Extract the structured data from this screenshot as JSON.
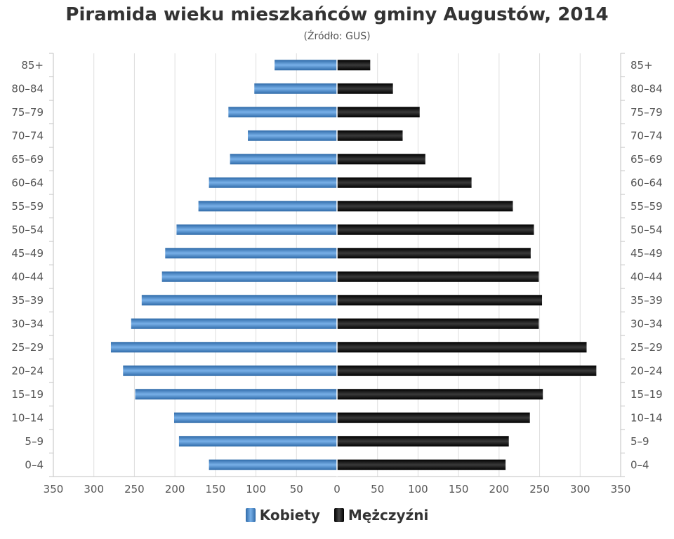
{
  "chart_data": {
    "type": "bar",
    "orientation": "horizontal-population-pyramid",
    "title": "Piramida wieku mieszkańców gminy Augustów, 2014",
    "subtitle": "(Źródło: GUS)",
    "categories": [
      "0-4",
      "5-9",
      "10-14",
      "15-19",
      "20-24",
      "25-29",
      "30-34",
      "35-39",
      "40-44",
      "45-49",
      "50-54",
      "55-59",
      "60-64",
      "65-69",
      "70-74",
      "75-79",
      "80-84",
      "85+"
    ],
    "category_labels": [
      "0–4",
      "5–9",
      "10–14",
      "15–19",
      "20–24",
      "25–29",
      "30–34",
      "35–39",
      "40–44",
      "45–49",
      "50–54",
      "55–59",
      "60–64",
      "65–69",
      "70–74",
      "75–79",
      "80–84",
      "85+"
    ],
    "series": [
      {
        "name": "Kobiety",
        "side": "left",
        "color": "#4a86c8",
        "values": [
          158,
          195,
          201,
          249,
          264,
          279,
          254,
          241,
          216,
          212,
          198,
          171,
          158,
          132,
          110,
          134,
          102,
          77
        ]
      },
      {
        "name": "Mężczyźni",
        "side": "right",
        "color": "#1a1a1a",
        "values": [
          208,
          212,
          238,
          254,
          320,
          308,
          249,
          253,
          249,
          239,
          243,
          217,
          166,
          109,
          81,
          102,
          69,
          41
        ]
      }
    ],
    "x_ticks": [
      "350",
      "300",
      "250",
      "200",
      "150",
      "100",
      "50",
      "0",
      "50",
      "100",
      "150",
      "200",
      "250",
      "300",
      "350"
    ],
    "xlim": [
      -350,
      350
    ],
    "grid": true,
    "legend_position": "bottom-center"
  }
}
